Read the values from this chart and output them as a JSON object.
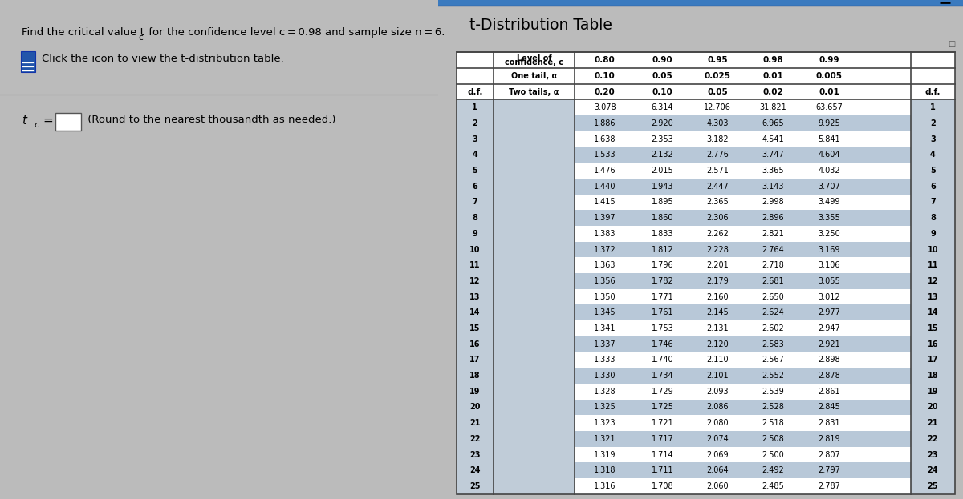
{
  "table_title": "t-Distribution Table",
  "df": [
    1,
    2,
    3,
    4,
    5,
    6,
    7,
    8,
    9,
    10,
    11,
    12,
    13,
    14,
    15,
    16,
    17,
    18,
    19,
    20,
    21,
    22,
    23,
    24,
    25
  ],
  "col080": [
    3.078,
    1.886,
    1.638,
    1.533,
    1.476,
    1.44,
    1.415,
    1.397,
    1.383,
    1.372,
    1.363,
    1.356,
    1.35,
    1.345,
    1.341,
    1.337,
    1.333,
    1.33,
    1.328,
    1.325,
    1.323,
    1.321,
    1.319,
    1.318,
    1.316
  ],
  "col090": [
    6.314,
    2.92,
    2.353,
    2.132,
    2.015,
    1.943,
    1.895,
    1.86,
    1.833,
    1.812,
    1.796,
    1.782,
    1.771,
    1.761,
    1.753,
    1.746,
    1.74,
    1.734,
    1.729,
    1.725,
    1.721,
    1.717,
    1.714,
    1.711,
    1.708
  ],
  "col095": [
    12.706,
    4.303,
    3.182,
    2.776,
    2.571,
    2.447,
    2.365,
    2.306,
    2.262,
    2.228,
    2.201,
    2.179,
    2.16,
    2.145,
    2.131,
    2.12,
    2.11,
    2.101,
    2.093,
    2.086,
    2.08,
    2.074,
    2.069,
    2.064,
    2.06
  ],
  "col098": [
    31.821,
    6.965,
    4.541,
    3.747,
    3.365,
    3.143,
    2.998,
    2.896,
    2.821,
    2.764,
    2.718,
    2.681,
    2.65,
    2.624,
    2.602,
    2.583,
    2.567,
    2.552,
    2.539,
    2.528,
    2.518,
    2.508,
    2.5,
    2.492,
    2.485
  ],
  "col099": [
    63.657,
    9.925,
    5.841,
    4.604,
    4.032,
    3.707,
    3.499,
    3.355,
    3.25,
    3.169,
    3.106,
    3.055,
    3.012,
    2.977,
    2.947,
    2.921,
    2.898,
    2.878,
    2.861,
    2.845,
    2.831,
    2.819,
    2.807,
    2.797,
    2.787
  ],
  "left_panel_bg": "#dcdcdc",
  "right_panel_bg": "#f0f0f0",
  "row_alt_color": "#b8c8d8",
  "row_white_color": "#ffffff",
  "df_col_color": "#c0ccd8",
  "header_bg": "#ffffff",
  "text_color": "#000000",
  "title_color": "#000000",
  "icon_color": "#2255aa",
  "border_color": "#444444",
  "blue_top": "#3a7abf",
  "conf_values": [
    "0.80",
    "0.90",
    "0.95",
    "0.98",
    "0.99"
  ],
  "one_tail": [
    "0.10",
    "0.05",
    "0.025",
    "0.01",
    "0.005"
  ],
  "two_tail": [
    "0.20",
    "0.10",
    "0.05",
    "0.02",
    "0.01"
  ]
}
